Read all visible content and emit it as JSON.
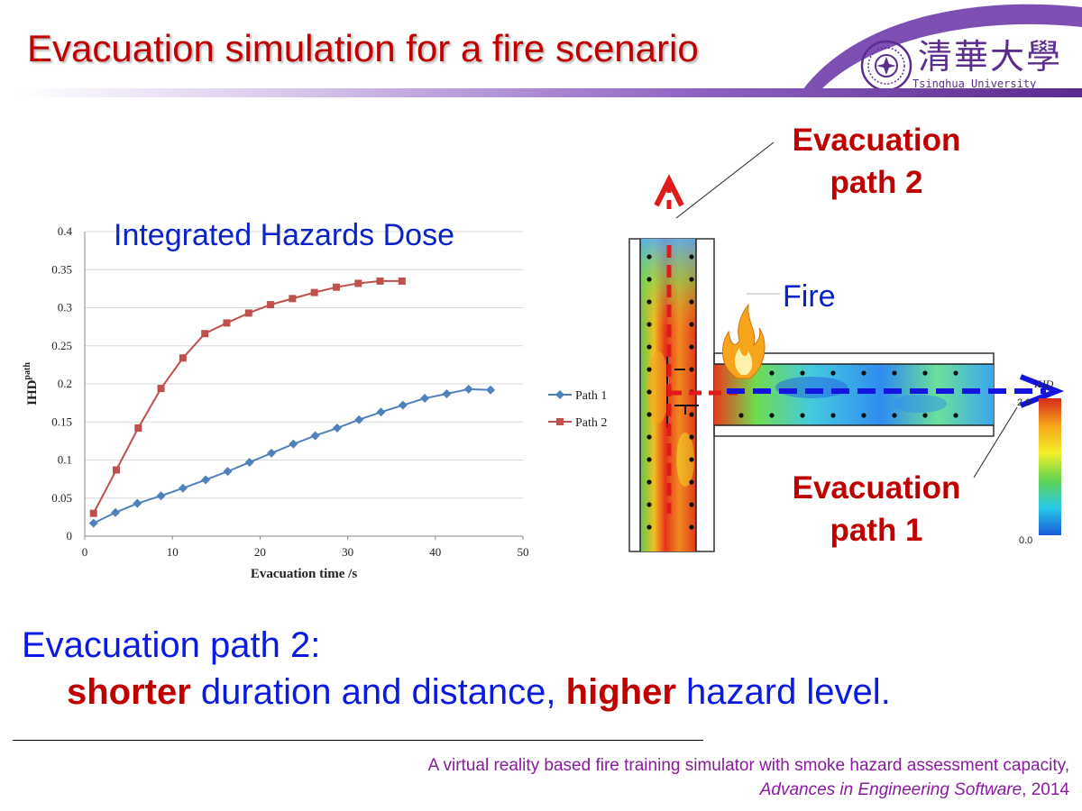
{
  "slide": {
    "title": "Evacuation simulation for a fire scenario",
    "logo": {
      "name_cn": "清華大學",
      "name_en": "Tsinghua University",
      "color": "#5b2d8e"
    },
    "callouts": {
      "path2": [
        "Evacuation",
        "path 2"
      ],
      "path1": [
        "Evacuation",
        "path 1"
      ],
      "fire": "Fire"
    },
    "colorbar": {
      "label": "IHD",
      "top_value": "2.0",
      "bottom_value": "0.0"
    },
    "conclusion": {
      "line1": "Evacuation path 2:",
      "emph1": "shorter",
      "text1": " duration and distance, ",
      "emph2": "higher",
      "text2": " hazard level."
    },
    "reference": {
      "line1": "A virtual reality based fire training simulator with smoke hazard assessment capacity,",
      "journal": "Advances in Engineering Software",
      "year_suffix": ", 2014"
    },
    "colors": {
      "title": "#c00000",
      "accent_blue": "#0a22c8",
      "reference": "#8a1a9f"
    }
  },
  "chart_data": {
    "type": "line",
    "title": "Integrated Hazards Dose",
    "xlabel": "Evacuation time /s",
    "ylabel_main": "IHD",
    "ylabel_sup": "path",
    "xlim": [
      0,
      50
    ],
    "ylim": [
      0,
      0.4
    ],
    "xticks": [
      "0",
      "10",
      "20",
      "30",
      "40",
      "50"
    ],
    "yticks": [
      "0",
      "0.05",
      "0.1",
      "0.15",
      "0.2",
      "0.25",
      "0.3",
      "0.35",
      "0.4"
    ],
    "grid": true,
    "legend_position": "right",
    "series": [
      {
        "name": "Path 1",
        "color": "#4f81bd",
        "marker": "diamond",
        "x": [
          1,
          3.5,
          6,
          8.7,
          11.2,
          13.8,
          16.3,
          18.8,
          21.3,
          23.8,
          26.3,
          28.8,
          31.3,
          33.8,
          36.3,
          38.8,
          41.3,
          43.8,
          46.3
        ],
        "y": [
          0.017,
          0.031,
          0.043,
          0.053,
          0.063,
          0.074,
          0.085,
          0.097,
          0.109,
          0.121,
          0.132,
          0.142,
          0.153,
          0.163,
          0.172,
          0.181,
          0.187,
          0.193,
          0.192
        ]
      },
      {
        "name": "Path 2",
        "color": "#c0504d",
        "marker": "square",
        "x": [
          1,
          3.6,
          6.1,
          8.7,
          11.2,
          13.7,
          16.2,
          18.7,
          21.2,
          23.7,
          26.2,
          28.7,
          31.2,
          33.7,
          36.2
        ],
        "y": [
          0.03,
          0.087,
          0.142,
          0.194,
          0.234,
          0.266,
          0.28,
          0.293,
          0.304,
          0.312,
          0.32,
          0.327,
          0.332,
          0.335,
          0.335
        ]
      }
    ]
  }
}
